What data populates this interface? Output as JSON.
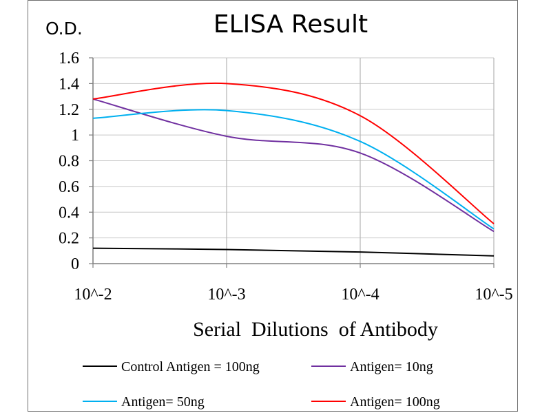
{
  "chart_data": {
    "type": "line",
    "title": "ELISA Result",
    "ylabel": "O.D.",
    "xlabel": "Serial  Dilutions  of Antibody",
    "categories": [
      "10^-2",
      "10^-3",
      "10^-4",
      "10^-5"
    ],
    "ylim": [
      0,
      1.6
    ],
    "yticks": [
      "0",
      "0.2",
      "0.4",
      "0.6",
      "0.8",
      "1",
      "1.2",
      "1.4",
      "1.6"
    ],
    "grid": true,
    "legend_position": "bottom",
    "series": [
      {
        "name": "Control Antigen = 100ng",
        "color": "#000000",
        "values": [
          0.12,
          0.11,
          0.09,
          0.06
        ]
      },
      {
        "name": "Antigen= 10ng",
        "color": "#7030a0",
        "values": [
          1.28,
          0.99,
          0.86,
          0.25
        ]
      },
      {
        "name": "Antigen= 50ng",
        "color": "#00b0f0",
        "values": [
          1.13,
          1.19,
          0.95,
          0.27
        ]
      },
      {
        "name": "Antigen= 100ng",
        "color": "#ff0000",
        "values": [
          1.28,
          1.4,
          1.15,
          0.31
        ]
      }
    ]
  }
}
